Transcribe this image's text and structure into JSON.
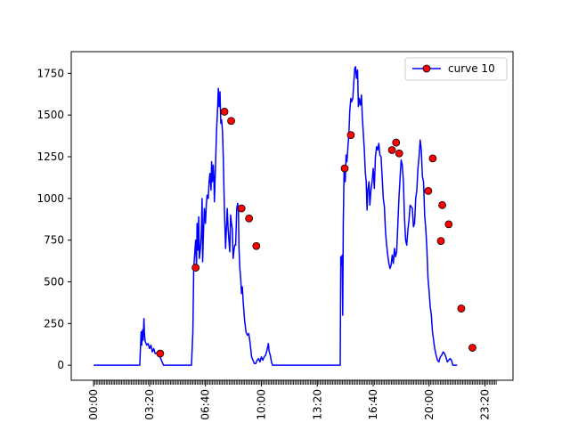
{
  "chart_data": {
    "type": "line",
    "title": "",
    "xlabel": "",
    "ylabel": "",
    "xlim_minutes": [
      -80,
      1500
    ],
    "ylim": [
      -90,
      1880
    ],
    "x_ticks": [
      {
        "minutes": 0,
        "label": "00:00"
      },
      {
        "minutes": 200,
        "label": "03:20"
      },
      {
        "minutes": 400,
        "label": "06:40"
      },
      {
        "minutes": 600,
        "label": "10:00"
      },
      {
        "minutes": 800,
        "label": "13:20"
      },
      {
        "minutes": 1000,
        "label": "16:40"
      },
      {
        "minutes": 1200,
        "label": "20:00"
      },
      {
        "minutes": 1400,
        "label": "23:20"
      }
    ],
    "y_ticks": [
      0,
      250,
      500,
      750,
      1000,
      1250,
      1500,
      1750
    ],
    "minor_tick_step_minutes": 5,
    "legend": {
      "label": "curve 10",
      "position": "top-right"
    },
    "series": [
      {
        "name": "curve 10",
        "color": "#0000ff",
        "marker_color": "#ff0000",
        "line_points": [
          [
            0,
            0
          ],
          [
            100,
            0
          ],
          [
            165,
            0
          ],
          [
            170,
            200
          ],
          [
            172,
            120
          ],
          [
            175,
            210
          ],
          [
            177,
            150
          ],
          [
            180,
            280
          ],
          [
            182,
            180
          ],
          [
            185,
            140
          ],
          [
            190,
            120
          ],
          [
            195,
            130
          ],
          [
            200,
            100
          ],
          [
            205,
            120
          ],
          [
            210,
            80
          ],
          [
            215,
            100
          ],
          [
            220,
            70
          ],
          [
            230,
            75
          ],
          [
            240,
            40
          ],
          [
            250,
            0
          ],
          [
            290,
            0
          ],
          [
            350,
            0
          ],
          [
            355,
            200
          ],
          [
            358,
            580
          ],
          [
            362,
            680
          ],
          [
            365,
            750
          ],
          [
            368,
            580
          ],
          [
            370,
            850
          ],
          [
            373,
            690
          ],
          [
            376,
            890
          ],
          [
            378,
            640
          ],
          [
            382,
            700
          ],
          [
            385,
            780
          ],
          [
            388,
            1000
          ],
          [
            390,
            620
          ],
          [
            393,
            800
          ],
          [
            396,
            940
          ],
          [
            400,
            850
          ],
          [
            403,
            960
          ],
          [
            406,
            1020
          ],
          [
            410,
            1000
          ],
          [
            413,
            1100
          ],
          [
            416,
            1150
          ],
          [
            420,
            1050
          ],
          [
            422,
            1220
          ],
          [
            425,
            1100
          ],
          [
            428,
            1200
          ],
          [
            430,
            1130
          ],
          [
            432,
            980
          ],
          [
            436,
            1200
          ],
          [
            440,
            1420
          ],
          [
            443,
            1520
          ],
          [
            446,
            1660
          ],
          [
            449,
            1550
          ],
          [
            452,
            1640
          ],
          [
            455,
            1450
          ],
          [
            458,
            1470
          ],
          [
            461,
            1400
          ],
          [
            464,
            1230
          ],
          [
            468,
            920
          ],
          [
            472,
            700
          ],
          [
            474,
            780
          ],
          [
            478,
            940
          ],
          [
            481,
            820
          ],
          [
            484,
            750
          ],
          [
            487,
            680
          ],
          [
            490,
            900
          ],
          [
            493,
            850
          ],
          [
            496,
            820
          ],
          [
            499,
            640
          ],
          [
            502,
            690
          ],
          [
            505,
            720
          ],
          [
            508,
            720
          ],
          [
            512,
            940
          ],
          [
            515,
            970
          ],
          [
            518,
            920
          ],
          [
            520,
            700
          ],
          [
            523,
            580
          ],
          [
            526,
            520
          ],
          [
            529,
            430
          ],
          [
            532,
            470
          ],
          [
            535,
            380
          ],
          [
            540,
            270
          ],
          [
            545,
            200
          ],
          [
            550,
            180
          ],
          [
            555,
            190
          ],
          [
            560,
            130
          ],
          [
            565,
            50
          ],
          [
            570,
            30
          ],
          [
            575,
            10
          ],
          [
            580,
            10
          ],
          [
            585,
            30
          ],
          [
            590,
            40
          ],
          [
            595,
            20
          ],
          [
            600,
            50
          ],
          [
            605,
            30
          ],
          [
            610,
            50
          ],
          [
            615,
            60
          ],
          [
            620,
            90
          ],
          [
            625,
            130
          ],
          [
            628,
            80
          ],
          [
            632,
            60
          ],
          [
            636,
            20
          ],
          [
            640,
            0
          ],
          [
            720,
            0
          ],
          [
            780,
            0
          ],
          [
            882,
            0
          ],
          [
            884,
            650
          ],
          [
            886,
            600
          ],
          [
            889,
            660
          ],
          [
            891,
            300
          ],
          [
            893,
            850
          ],
          [
            896,
            1180
          ],
          [
            900,
            1100
          ],
          [
            903,
            1260
          ],
          [
            906,
            1220
          ],
          [
            910,
            1320
          ],
          [
            913,
            1380
          ],
          [
            916,
            1520
          ],
          [
            920,
            1600
          ],
          [
            923,
            1580
          ],
          [
            927,
            1600
          ],
          [
            930,
            1680
          ],
          [
            934,
            1780
          ],
          [
            937,
            1790
          ],
          [
            940,
            1720
          ],
          [
            944,
            1770
          ],
          [
            947,
            1550
          ],
          [
            950,
            1600
          ],
          [
            954,
            1560
          ],
          [
            958,
            1620
          ],
          [
            961,
            1490
          ],
          [
            965,
            1380
          ],
          [
            968,
            1300
          ],
          [
            972,
            1150
          ],
          [
            975,
            1100
          ],
          [
            978,
            930
          ],
          [
            981,
            1050
          ],
          [
            985,
            1100
          ],
          [
            988,
            960
          ],
          [
            992,
            1050
          ],
          [
            996,
            1100
          ],
          [
            1000,
            1180
          ],
          [
            1004,
            1060
          ],
          [
            1008,
            1250
          ],
          [
            1012,
            1310
          ],
          [
            1016,
            1290
          ],
          [
            1020,
            1330
          ],
          [
            1024,
            1260
          ],
          [
            1028,
            1250
          ],
          [
            1032,
            1130
          ],
          [
            1036,
            1000
          ],
          [
            1040,
            950
          ],
          [
            1044,
            800
          ],
          [
            1048,
            720
          ],
          [
            1052,
            660
          ],
          [
            1056,
            610
          ],
          [
            1060,
            580
          ],
          [
            1064,
            600
          ],
          [
            1068,
            660
          ],
          [
            1072,
            610
          ],
          [
            1076,
            700
          ],
          [
            1080,
            650
          ],
          [
            1084,
            680
          ],
          [
            1088,
            840
          ],
          [
            1092,
            1000
          ],
          [
            1096,
            1120
          ],
          [
            1100,
            1230
          ],
          [
            1104,
            1200
          ],
          [
            1108,
            1100
          ],
          [
            1112,
            880
          ],
          [
            1116,
            750
          ],
          [
            1120,
            720
          ],
          [
            1124,
            810
          ],
          [
            1128,
            870
          ],
          [
            1132,
            960
          ],
          [
            1136,
            950
          ],
          [
            1140,
            940
          ],
          [
            1144,
            830
          ],
          [
            1148,
            850
          ],
          [
            1152,
            1000
          ],
          [
            1156,
            1050
          ],
          [
            1160,
            1180
          ],
          [
            1164,
            1250
          ],
          [
            1168,
            1350
          ],
          [
            1172,
            1290
          ],
          [
            1176,
            1130
          ],
          [
            1180,
            1100
          ],
          [
            1184,
            900
          ],
          [
            1188,
            820
          ],
          [
            1192,
            700
          ],
          [
            1196,
            520
          ],
          [
            1200,
            440
          ],
          [
            1204,
            350
          ],
          [
            1208,
            300
          ],
          [
            1212,
            200
          ],
          [
            1216,
            150
          ],
          [
            1220,
            100
          ],
          [
            1225,
            60
          ],
          [
            1230,
            30
          ],
          [
            1235,
            20
          ],
          [
            1240,
            50
          ],
          [
            1245,
            60
          ],
          [
            1250,
            80
          ],
          [
            1255,
            70
          ],
          [
            1260,
            50
          ],
          [
            1265,
            20
          ],
          [
            1270,
            30
          ],
          [
            1275,
            40
          ],
          [
            1280,
            30
          ],
          [
            1285,
            0
          ],
          [
            1300,
            0
          ]
        ],
        "marker_points": [
          [
            238,
            70
          ],
          [
            365,
            585
          ],
          [
            468,
            1520
          ],
          [
            492,
            1465
          ],
          [
            529,
            940
          ],
          [
            556,
            880
          ],
          [
            582,
            715
          ],
          [
            898,
            1180
          ],
          [
            920,
            1380
          ],
          [
            1067,
            1290
          ],
          [
            1082,
            1335
          ],
          [
            1093,
            1270
          ],
          [
            1197,
            1045
          ],
          [
            1213,
            1240
          ],
          [
            1242,
            745
          ],
          [
            1247,
            960
          ],
          [
            1270,
            845
          ],
          [
            1315,
            340
          ],
          [
            1355,
            105
          ]
        ]
      }
    ]
  }
}
